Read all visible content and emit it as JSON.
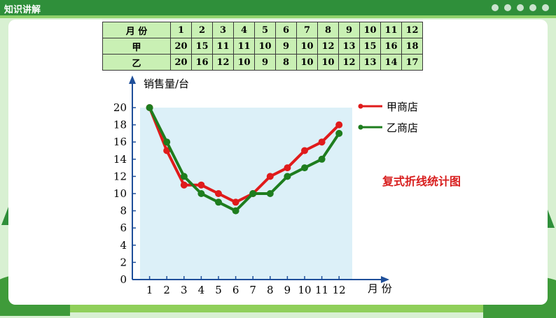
{
  "header": {
    "label": "知识讲解"
  },
  "table": {
    "row_labels": [
      "月  份",
      "甲",
      "乙"
    ],
    "months": [
      "1",
      "2",
      "3",
      "4",
      "5",
      "6",
      "7",
      "8",
      "9",
      "10",
      "11",
      "12"
    ],
    "jia": [
      "20",
      "15",
      "11",
      "11",
      "10",
      "9",
      "10",
      "12",
      "13",
      "15",
      "16",
      "18"
    ],
    "yi": [
      "20",
      "16",
      "12",
      "10",
      "9",
      "8",
      "10",
      "10",
      "12",
      "13",
      "14",
      "17"
    ]
  },
  "note": "复式折线统计图",
  "colors": {
    "jia": "#e01b1b",
    "yi": "#1e7d1e",
    "plot_bg": "#dcf0f8",
    "axis": "#1f4f9a"
  },
  "chart_data": {
    "type": "line",
    "ylabel": "销售量/台",
    "xlabel": "月 份",
    "x": [
      1,
      2,
      3,
      4,
      5,
      6,
      7,
      8,
      9,
      10,
      11,
      12
    ],
    "xticks": [
      "1",
      "2",
      "3",
      "4",
      "5",
      "6",
      "7",
      "8",
      "9",
      "10",
      "11",
      "12"
    ],
    "yticks": [
      "0",
      "2",
      "4",
      "6",
      "8",
      "10",
      "12",
      "14",
      "16",
      "18",
      "20"
    ],
    "ylim": [
      0,
      20
    ],
    "grid": false,
    "legend_position": "right",
    "series": [
      {
        "name": "甲商店",
        "values": [
          20,
          15,
          11,
          11,
          10,
          9,
          10,
          12,
          13,
          15,
          16,
          18
        ]
      },
      {
        "name": "乙商店",
        "values": [
          20,
          16,
          12,
          10,
          9,
          8,
          10,
          10,
          12,
          13,
          14,
          17
        ]
      }
    ]
  }
}
